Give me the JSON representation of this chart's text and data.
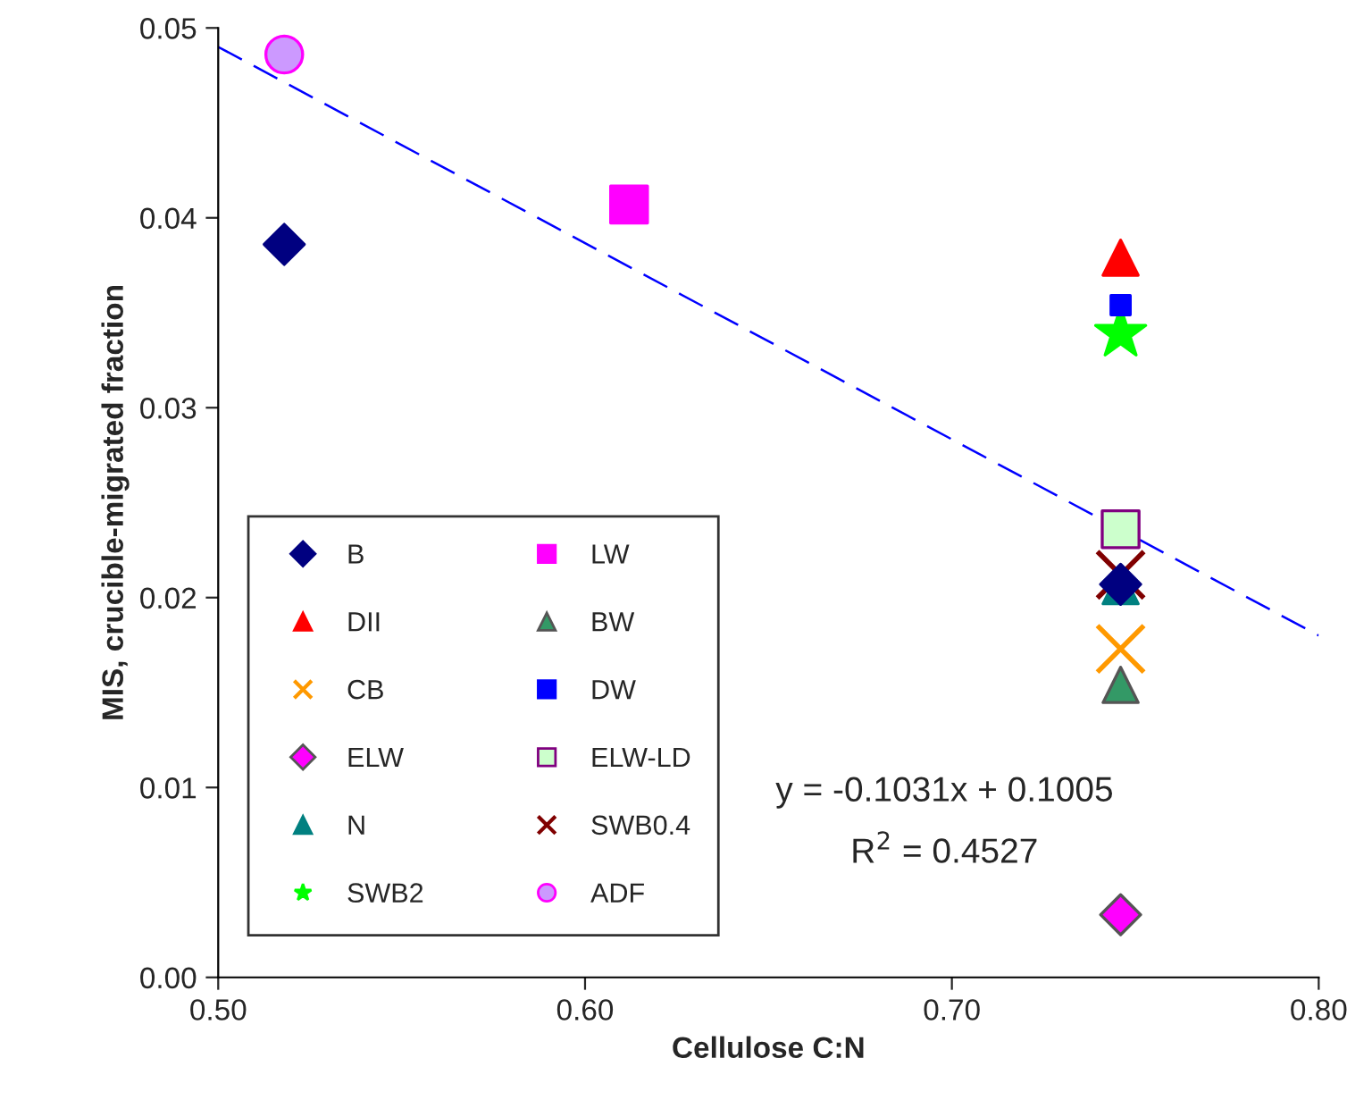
{
  "chart_data": {
    "type": "scatter",
    "xlabel": "Cellulose C:N",
    "ylabel": "MIS, crucible-migrated fraction",
    "xlim": [
      0.5,
      0.8
    ],
    "ylim": [
      0,
      0.05
    ],
    "xticks": [
      {
        "value": 0.5,
        "label": "0.50"
      },
      {
        "value": 0.6,
        "label": "0.60"
      },
      {
        "value": 0.7,
        "label": "0.70"
      },
      {
        "value": 0.8,
        "label": "0.80"
      }
    ],
    "yticks": [
      {
        "value": 0,
        "label": "0.00"
      },
      {
        "value": 0.01,
        "label": "0.01"
      },
      {
        "value": 0.02,
        "label": "0.02"
      },
      {
        "value": 0.03,
        "label": "0.03"
      },
      {
        "value": 0.04,
        "label": "0.04"
      },
      {
        "value": 0.05,
        "label": "0.05"
      }
    ],
    "grid": false,
    "legend": "bottom left",
    "annotations": [
      "y = -0.1031x + 0.1005",
      "R$^{2}$ = 0.4527"
    ],
    "series": [
      {
        "name": "B",
        "color": "#000080",
        "marker": "diamond",
        "x": [
          0.518,
          0.746
        ],
        "values": [
          0.0386,
          0.0207
        ]
      },
      {
        "name": "LW",
        "color": "#ff00ff",
        "marker": "square",
        "x": [
          0.612
        ],
        "values": [
          0.0407
        ]
      },
      {
        "name": "DII",
        "color": "#ff0000",
        "marker": "triangle",
        "x": [
          0.746
        ],
        "values": [
          0.0379
        ]
      },
      {
        "name": "BW",
        "color": "#339966",
        "marker": "triangle",
        "x": [
          0.746
        ],
        "values": [
          0.0154
        ]
      },
      {
        "name": "CB",
        "color": "#ff9900",
        "marker": "cross",
        "x": [
          0.746
        ],
        "values": [
          0.0173
        ]
      },
      {
        "name": "DW",
        "color": "#0000ff",
        "marker": "square",
        "x": [
          0.746
        ],
        "values": [
          0.0354
        ]
      },
      {
        "name": "ELW",
        "color": "#ff00ff",
        "marker": "diamond",
        "x": [
          0.746
        ],
        "values": [
          0.0033
        ]
      },
      {
        "name": "ELW-LD",
        "color": "#ccffcc",
        "marker": "square",
        "x": [
          0.746
        ],
        "values": [
          0.0236
        ]
      },
      {
        "name": "N",
        "color": "#008080",
        "marker": "triangle",
        "x": [
          0.746
        ],
        "values": [
          0.0206
        ]
      },
      {
        "name": "SWB0.4",
        "color": "#800000",
        "marker": "cross",
        "x": [
          0.746
        ],
        "values": [
          0.0212
        ]
      },
      {
        "name": "SWB2",
        "color": "#00ff00",
        "marker": "star",
        "x": [
          0.746
        ],
        "values": [
          0.0339
        ]
      },
      {
        "name": "ADF",
        "color": "#cc99ff",
        "marker": "circle",
        "x": [
          0.518
        ],
        "values": [
          0.0486
        ]
      },
      {
        "type": "line",
        "color": "#0000ff",
        "line_style": "dashed",
        "marker": "none",
        "x": [
          0.5,
          0.8
        ],
        "values": [
          0.049,
          0.018
        ]
      }
    ]
  }
}
